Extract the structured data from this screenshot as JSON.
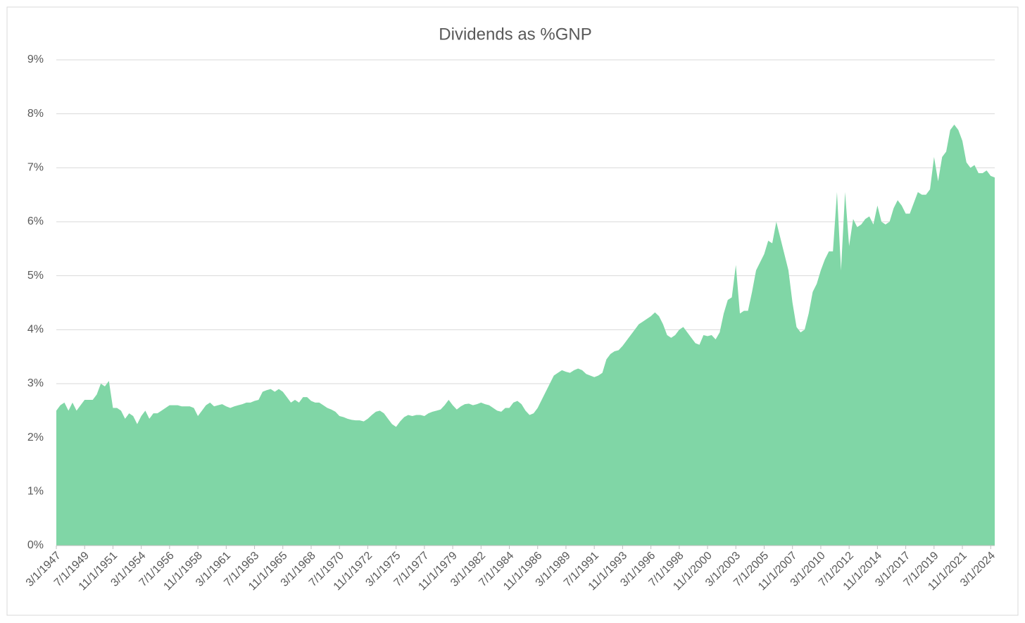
{
  "chart_data": {
    "type": "area",
    "title": "Dividends as %GNP",
    "categories": [
      "3/1/1947",
      null,
      null,
      null,
      null,
      null,
      null,
      "7/1/1949",
      null,
      null,
      null,
      null,
      null,
      null,
      "11/1/1951",
      null,
      null,
      null,
      null,
      null,
      null,
      "3/1/1954",
      null,
      null,
      null,
      null,
      null,
      null,
      "7/1/1956",
      null,
      null,
      null,
      null,
      null,
      null,
      "11/1/1958",
      null,
      null,
      null,
      null,
      null,
      null,
      "3/1/1961",
      null,
      null,
      null,
      null,
      null,
      null,
      "7/1/1963",
      null,
      null,
      null,
      null,
      null,
      null,
      "11/1/1965",
      null,
      null,
      null,
      null,
      null,
      null,
      "3/1/1968",
      null,
      null,
      null,
      null,
      null,
      null,
      "7/1/1970",
      null,
      null,
      null,
      null,
      null,
      null,
      "11/1/1972",
      null,
      null,
      null,
      null,
      null,
      null,
      "3/1/1975",
      null,
      null,
      null,
      null,
      null,
      null,
      "7/1/1977",
      null,
      null,
      null,
      null,
      null,
      null,
      "11/1/1979",
      null,
      null,
      null,
      null,
      null,
      null,
      "3/1/1982",
      null,
      null,
      null,
      null,
      null,
      null,
      "7/1/1984",
      null,
      null,
      null,
      null,
      null,
      null,
      "11/1/1986",
      null,
      null,
      null,
      null,
      null,
      null,
      "3/1/1989",
      null,
      null,
      null,
      null,
      null,
      null,
      "7/1/1991",
      null,
      null,
      null,
      null,
      null,
      null,
      "11/1/1993",
      null,
      null,
      null,
      null,
      null,
      null,
      "3/1/1996",
      null,
      null,
      null,
      null,
      null,
      null,
      "7/1/1998",
      null,
      null,
      null,
      null,
      null,
      null,
      "11/1/2000",
      null,
      null,
      null,
      null,
      null,
      null,
      "3/1/2003",
      null,
      null,
      null,
      null,
      null,
      null,
      "7/1/2005",
      null,
      null,
      null,
      null,
      null,
      null,
      "11/1/2007",
      null,
      null,
      null,
      null,
      null,
      null,
      "3/1/2010",
      null,
      null,
      null,
      null,
      null,
      null,
      "7/1/2012",
      null,
      null,
      null,
      null,
      null,
      null,
      "11/1/2014",
      null,
      null,
      null,
      null,
      null,
      null,
      "3/1/2017",
      null,
      null,
      null,
      null,
      null,
      null,
      "7/1/2019",
      null,
      null,
      null,
      null,
      null,
      null,
      "11/1/2021",
      null,
      null,
      null,
      null,
      null,
      null,
      "3/1/2024",
      null
    ],
    "values": [
      2.5,
      2.6,
      2.65,
      2.5,
      2.65,
      2.5,
      2.6,
      2.7,
      2.7,
      2.7,
      2.8,
      3.0,
      2.95,
      3.05,
      2.55,
      2.55,
      2.5,
      2.35,
      2.45,
      2.4,
      2.25,
      2.4,
      2.5,
      2.35,
      2.45,
      2.45,
      2.5,
      2.55,
      2.6,
      2.6,
      2.6,
      2.58,
      2.58,
      2.58,
      2.55,
      2.4,
      2.5,
      2.6,
      2.65,
      2.58,
      2.6,
      2.62,
      2.58,
      2.55,
      2.58,
      2.6,
      2.62,
      2.65,
      2.65,
      2.68,
      2.7,
      2.85,
      2.88,
      2.9,
      2.85,
      2.9,
      2.85,
      2.75,
      2.65,
      2.7,
      2.65,
      2.75,
      2.75,
      2.68,
      2.65,
      2.65,
      2.6,
      2.55,
      2.52,
      2.48,
      2.4,
      2.38,
      2.35,
      2.33,
      2.32,
      2.32,
      2.3,
      2.35,
      2.42,
      2.48,
      2.5,
      2.45,
      2.35,
      2.25,
      2.2,
      2.3,
      2.38,
      2.42,
      2.4,
      2.42,
      2.42,
      2.4,
      2.45,
      2.48,
      2.5,
      2.52,
      2.6,
      2.7,
      2.6,
      2.52,
      2.58,
      2.62,
      2.63,
      2.6,
      2.62,
      2.65,
      2.62,
      2.6,
      2.55,
      2.5,
      2.48,
      2.55,
      2.55,
      2.65,
      2.68,
      2.62,
      2.5,
      2.42,
      2.45,
      2.55,
      2.7,
      2.85,
      3.0,
      3.15,
      3.2,
      3.25,
      3.22,
      3.2,
      3.25,
      3.28,
      3.25,
      3.18,
      3.15,
      3.12,
      3.15,
      3.2,
      3.45,
      3.55,
      3.6,
      3.62,
      3.7,
      3.8,
      3.9,
      4.0,
      4.1,
      4.15,
      4.2,
      4.25,
      4.32,
      4.25,
      4.1,
      3.9,
      3.85,
      3.9,
      4.0,
      4.05,
      3.95,
      3.85,
      3.75,
      3.72,
      3.9,
      3.88,
      3.9,
      3.82,
      3.95,
      4.3,
      4.55,
      4.6,
      5.2,
      4.3,
      4.35,
      4.35,
      4.7,
      5.1,
      5.25,
      5.4,
      5.65,
      5.6,
      6.0,
      5.7,
      5.4,
      5.1,
      4.5,
      4.05,
      3.95,
      4.0,
      4.3,
      4.7,
      4.85,
      5.1,
      5.3,
      5.45,
      5.45,
      6.55,
      5.1,
      6.55,
      5.55,
      6.05,
      5.9,
      5.95,
      6.05,
      6.1,
      5.95,
      6.3,
      6.0,
      5.95,
      6.0,
      6.25,
      6.4,
      6.3,
      6.15,
      6.15,
      6.35,
      6.55,
      6.5,
      6.5,
      6.6,
      7.2,
      6.75,
      7.2,
      7.3,
      7.7,
      7.8,
      7.7,
      7.5,
      7.1,
      7.0,
      7.05,
      6.9,
      6.9,
      6.95,
      6.85,
      6.82
    ],
    "color": "#80d6a6",
    "ylim": [
      0,
      9
    ],
    "yticks": [
      {
        "value": 0,
        "label": "0%"
      },
      {
        "value": 1,
        "label": "1%"
      },
      {
        "value": 2,
        "label": "2%"
      },
      {
        "value": 3,
        "label": "3%"
      },
      {
        "value": 4,
        "label": "4%"
      },
      {
        "value": 5,
        "label": "5%"
      },
      {
        "value": 6,
        "label": "6%"
      },
      {
        "value": 7,
        "label": "7%"
      },
      {
        "value": 8,
        "label": "8%"
      },
      {
        "value": 9,
        "label": "9%"
      }
    ],
    "grid": true
  }
}
